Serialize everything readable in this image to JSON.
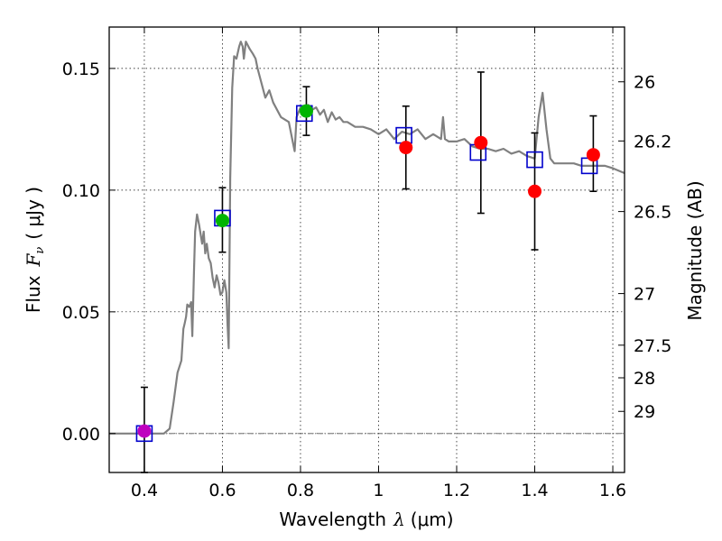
{
  "chart_data": {
    "type": "line",
    "xlabel_main": "Wavelength",
    "xlabel_symbol": "λ",
    "xlabel_unit": "(μm)",
    "ylabel_main": "Flux",
    "ylabel_symbol": "F",
    "ylabel_sub": "ν",
    "ylabel_unit": "( μJy )",
    "y2label": "Magnitude (AB)",
    "xlim": [
      0.31,
      1.63
    ],
    "ylim": [
      -0.016,
      0.167
    ],
    "x_ticks": [
      0.4,
      0.6,
      0.8,
      1.0,
      1.2,
      1.4,
      1.6
    ],
    "x_tick_labels": [
      "0.4",
      "0.6",
      "0.8",
      "1",
      "1.2",
      "1.4",
      "1.6"
    ],
    "y_ticks": [
      0.0,
      0.05,
      0.1,
      0.15
    ],
    "y_tick_labels": [
      "0.00",
      "0.05",
      "0.10",
      "0.15"
    ],
    "y2_ticks": [
      {
        "label": "26",
        "flux": 0.1445
      },
      {
        "label": "26.2",
        "flux": 0.1202
      },
      {
        "label": "26.5",
        "flux": 0.0912
      },
      {
        "label": "27",
        "flux": 0.0575
      },
      {
        "label": "27.5",
        "flux": 0.0363
      },
      {
        "label": "28",
        "flux": 0.0229
      },
      {
        "label": "29",
        "flux": 0.0091
      }
    ],
    "grid": true,
    "colors": {
      "model": "#808080",
      "squares": "#0000cc",
      "magenta": "#bf00bf",
      "green": "#00b400",
      "red": "#ff0000",
      "errorbar": "#000000",
      "zero_line": "#555555"
    },
    "series": [
      {
        "name": "model spectrum",
        "x": [
          0.31,
          0.45,
          0.465,
          0.475,
          0.485,
          0.495,
          0.5,
          0.503,
          0.507,
          0.51,
          0.515,
          0.52,
          0.523,
          0.527,
          0.53,
          0.535,
          0.54,
          0.548,
          0.552,
          0.556,
          0.56,
          0.565,
          0.57,
          0.575,
          0.58,
          0.585,
          0.59,
          0.595,
          0.6,
          0.605,
          0.61,
          0.613,
          0.616,
          0.62,
          0.625,
          0.63,
          0.636,
          0.643,
          0.647,
          0.652,
          0.655,
          0.66,
          0.67,
          0.678,
          0.685,
          0.69,
          0.7,
          0.71,
          0.72,
          0.73,
          0.75,
          0.77,
          0.78,
          0.785,
          0.79,
          0.8,
          0.81,
          0.82,
          0.83,
          0.84,
          0.85,
          0.86,
          0.87,
          0.88,
          0.89,
          0.9,
          0.91,
          0.92,
          0.94,
          0.96,
          0.98,
          1.0,
          1.02,
          1.04,
          1.06,
          1.08,
          1.1,
          1.12,
          1.14,
          1.16,
          1.165,
          1.17,
          1.18,
          1.2,
          1.22,
          1.24,
          1.26,
          1.28,
          1.3,
          1.32,
          1.34,
          1.36,
          1.38,
          1.4,
          1.41,
          1.42,
          1.43,
          1.44,
          1.45,
          1.46,
          1.48,
          1.5,
          1.52,
          1.54,
          1.56,
          1.58,
          1.6,
          1.63
        ],
        "y": [
          0.0,
          0.0,
          0.002,
          0.013,
          0.025,
          0.03,
          0.043,
          0.045,
          0.048,
          0.053,
          0.052,
          0.054,
          0.04,
          0.066,
          0.083,
          0.09,
          0.086,
          0.078,
          0.083,
          0.074,
          0.078,
          0.072,
          0.07,
          0.064,
          0.06,
          0.065,
          0.062,
          0.057,
          0.058,
          0.063,
          0.058,
          0.045,
          0.035,
          0.105,
          0.142,
          0.155,
          0.154,
          0.159,
          0.161,
          0.159,
          0.154,
          0.161,
          0.158,
          0.156,
          0.154,
          0.15,
          0.144,
          0.138,
          0.141,
          0.136,
          0.13,
          0.128,
          0.12,
          0.116,
          0.13,
          0.134,
          0.132,
          0.135,
          0.133,
          0.134,
          0.131,
          0.133,
          0.128,
          0.132,
          0.129,
          0.13,
          0.128,
          0.128,
          0.126,
          0.126,
          0.125,
          0.123,
          0.125,
          0.121,
          0.124,
          0.123,
          0.125,
          0.121,
          0.123,
          0.121,
          0.13,
          0.121,
          0.12,
          0.12,
          0.121,
          0.118,
          0.117,
          0.117,
          0.116,
          0.117,
          0.115,
          0.116,
          0.114,
          0.113,
          0.13,
          0.14,
          0.125,
          0.113,
          0.111,
          0.111,
          0.111,
          0.111,
          0.11,
          0.11,
          0.11,
          0.11,
          0.109,
          0.107
        ]
      },
      {
        "name": "model photometry (squares)",
        "x": [
          0.4,
          0.6,
          0.81,
          1.065,
          1.255,
          1.4,
          1.54
        ],
        "y": [
          0.0,
          0.0885,
          0.1315,
          0.1225,
          0.1155,
          0.1125,
          0.11
        ]
      },
      {
        "name": "upper-limit point",
        "x": [
          0.4
        ],
        "y": [
          0.001
        ],
        "yerr_high": [
          0.019
        ],
        "yerr_low": [
          -0.016
        ]
      },
      {
        "name": "optical detections",
        "x": [
          0.6,
          0.815
        ],
        "y": [
          0.0875,
          0.1325
        ],
        "yerr_high": [
          0.101,
          0.1425
        ],
        "yerr_low": [
          0.0745,
          0.1225
        ]
      },
      {
        "name": "near-infrared detections",
        "x": [
          1.07,
          1.262,
          1.4,
          1.55
        ],
        "y": [
          0.1175,
          0.1195,
          0.0995,
          0.1145
        ],
        "yerr_high": [
          0.1345,
          0.1485,
          0.1235,
          0.1305
        ],
        "yerr_low": [
          0.1005,
          0.0905,
          0.0755,
          0.0995
        ]
      }
    ]
  }
}
